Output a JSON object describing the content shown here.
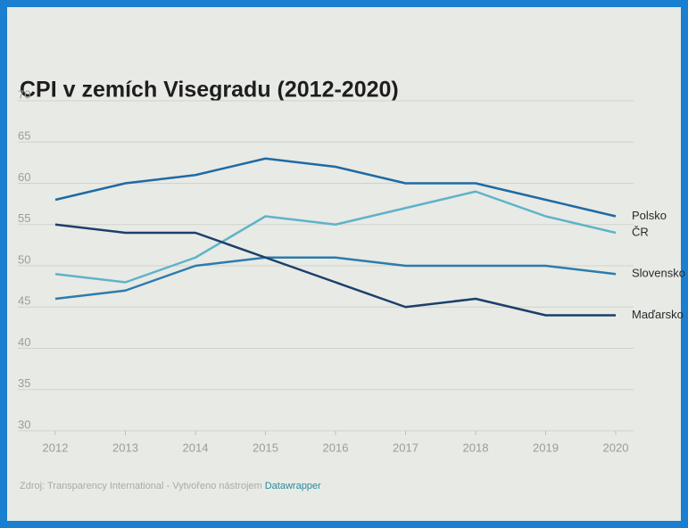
{
  "chart_data": {
    "type": "line",
    "title": "CPI v zemích Visegradu (2012-2020)",
    "x": [
      2012,
      2013,
      2014,
      2015,
      2016,
      2017,
      2018,
      2019,
      2020
    ],
    "series": [
      {
        "name": "Polsko",
        "color": "#1f6aa5",
        "values": [
          58,
          60,
          61,
          63,
          62,
          60,
          60,
          58,
          56
        ]
      },
      {
        "name": "ČR",
        "color": "#5fb3c9",
        "values": [
          49,
          48,
          51,
          56,
          55,
          57,
          59,
          56,
          54
        ]
      },
      {
        "name": "Slovensko",
        "color": "#2b7cad",
        "values": [
          46,
          47,
          50,
          51,
          51,
          50,
          50,
          50,
          49
        ]
      },
      {
        "name": "Maďarsko",
        "color": "#1b3f6b",
        "values": [
          55,
          54,
          54,
          51,
          48,
          45,
          46,
          44,
          44
        ]
      }
    ],
    "xlim": [
      2012,
      2020
    ],
    "xticks": [
      2012,
      2013,
      2014,
      2015,
      2016,
      2017,
      2018,
      2019,
      2020
    ],
    "ylim": [
      30,
      70
    ],
    "yticks": [
      30,
      35,
      40,
      45,
      50,
      55,
      60,
      65,
      70
    ],
    "grid": true,
    "source": "Zdroj: Transparency International - Vytvořeno nástrojem",
    "source_link": "Datawrapper"
  }
}
